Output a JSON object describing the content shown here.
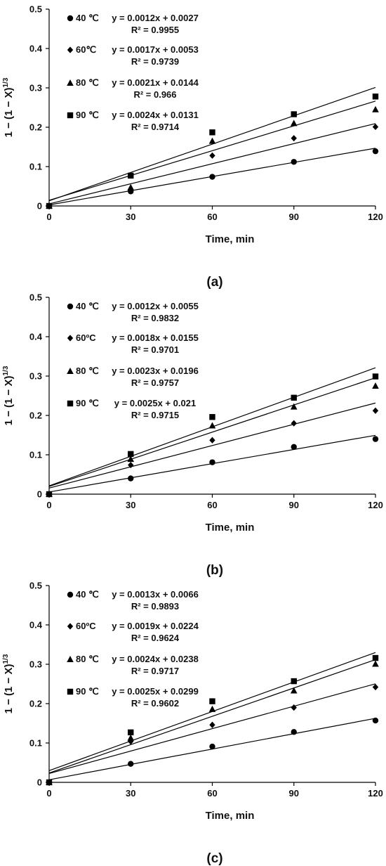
{
  "chart_data": [
    {
      "type": "scatter",
      "panel_label": "(a)",
      "xlabel": "Time, min",
      "ylabel": "1 − (1 − X)",
      "ylabel_sup": "1/3",
      "xlim": [
        0,
        120
      ],
      "ylim": [
        0,
        0.5
      ],
      "xticks": [
        "0",
        "30",
        "60",
        "90",
        "120"
      ],
      "yticks": [
        "0",
        "0.1",
        "0.2",
        "0.3",
        "0.4",
        "0.5"
      ],
      "grid": false,
      "x": [
        0,
        30,
        60,
        90,
        120
      ],
      "series": [
        {
          "name": "40 ℃",
          "marker": "circle",
          "values": [
            0,
            0.037,
            0.074,
            0.112,
            0.139
          ],
          "equation": "y = 0.0012x + 0.0027",
          "r2": "R² = 0.9955",
          "slope": 0.0012,
          "intercept": 0.0027
        },
        {
          "name": "60℃",
          "marker": "diamond",
          "values": [
            0,
            0.042,
            0.128,
            0.172,
            0.201
          ],
          "equation": "y = 0.0017x + 0.0053",
          "r2": "R² = 0.9739",
          "slope": 0.0017,
          "intercept": 0.0053
        },
        {
          "name": "80 ℃",
          "marker": "triangle",
          "values": [
            0,
            0.047,
            0.165,
            0.21,
            0.245
          ],
          "equation": "y = 0.0021x + 0.0144",
          "r2": "R² = 0.966",
          "slope": 0.0021,
          "intercept": 0.0144
        },
        {
          "name": "90 ℃",
          "marker": "square",
          "values": [
            0,
            0.077,
            0.187,
            0.233,
            0.278
          ],
          "equation": "y = 0.0024x + 0.0131",
          "r2": "R² = 0.9714",
          "slope": 0.0024,
          "intercept": 0.0131
        }
      ]
    },
    {
      "type": "scatter",
      "panel_label": "(b)",
      "xlabel": "Time, min",
      "ylabel": "1 − (1 − X)",
      "ylabel_sup": "1/3",
      "xlim": [
        0,
        120
      ],
      "ylim": [
        0,
        0.5
      ],
      "xticks": [
        "0",
        "30",
        "60",
        "90",
        "120"
      ],
      "yticks": [
        "0",
        "0.1",
        "0.2",
        "0.3",
        "0.4",
        "0.5"
      ],
      "grid": false,
      "x": [
        0,
        30,
        60,
        90,
        120
      ],
      "series": [
        {
          "name": "40 ℃",
          "marker": "circle",
          "values": [
            0,
            0.04,
            0.081,
            0.12,
            0.14
          ],
          "equation": "y = 0.0012x + 0.0055",
          "r2": "R² = 0.9832",
          "slope": 0.0012,
          "intercept": 0.0055
        },
        {
          "name": "60ºC",
          "marker": "diamond",
          "values": [
            0,
            0.074,
            0.137,
            0.18,
            0.212
          ],
          "equation": "y = 0.0018x + 0.0155",
          "r2": "R² = 0.9701",
          "slope": 0.0018,
          "intercept": 0.0155
        },
        {
          "name": "80 ℃",
          "marker": "triangle",
          "values": [
            0,
            0.089,
            0.174,
            0.222,
            0.275
          ],
          "equation": "y = 0.0023x + 0.0196",
          "r2": "R² = 0.9757",
          "slope": 0.0023,
          "intercept": 0.0196
        },
        {
          "name": "90 ℃",
          "marker": "square",
          "values": [
            0,
            0.102,
            0.196,
            0.245,
            0.299
          ],
          "equation": "y = 0.0025x + 0.021",
          "r2": "R² = 0.9715",
          "slope": 0.0025,
          "intercept": 0.021
        }
      ]
    },
    {
      "type": "scatter",
      "panel_label": "(c)",
      "xlabel": "Time, min",
      "ylabel": "1 − (1 − X)",
      "ylabel_sup": "1/3",
      "xlim": [
        0,
        120
      ],
      "ylim": [
        0,
        0.5
      ],
      "xticks": [
        "0",
        "30",
        "60",
        "90",
        "120"
      ],
      "yticks": [
        "0",
        "0.1",
        "0.2",
        "0.3",
        "0.4",
        "0.5"
      ],
      "grid": false,
      "x": [
        0,
        30,
        60,
        90,
        120
      ],
      "series": [
        {
          "name": "40 ℃",
          "marker": "circle",
          "values": [
            0,
            0.047,
            0.091,
            0.128,
            0.157
          ],
          "equation": "y = 0.0013x + 0.0066",
          "r2": "R² = 0.9893",
          "slope": 0.0013,
          "intercept": 0.0066
        },
        {
          "name": "60ºC",
          "marker": "diamond",
          "values": [
            0,
            0.104,
            0.146,
            0.19,
            0.242
          ],
          "equation": "y = 0.0019x + 0.0224",
          "r2": "R² = 0.9624",
          "slope": 0.0019,
          "intercept": 0.0224
        },
        {
          "name": "80 ℃",
          "marker": "triangle",
          "values": [
            0,
            0.113,
            0.186,
            0.233,
            0.301
          ],
          "equation": "y = 0.0024x + 0.0238",
          "r2": "R² = 0.9717",
          "slope": 0.0024,
          "intercept": 0.0238
        },
        {
          "name": "90 ℃",
          "marker": "square",
          "values": [
            0,
            0.127,
            0.206,
            0.257,
            0.316
          ],
          "equation": "y = 0.0025x + 0.0299",
          "r2": "R² = 0.9602",
          "slope": 0.0025,
          "intercept": 0.0299
        }
      ]
    }
  ]
}
